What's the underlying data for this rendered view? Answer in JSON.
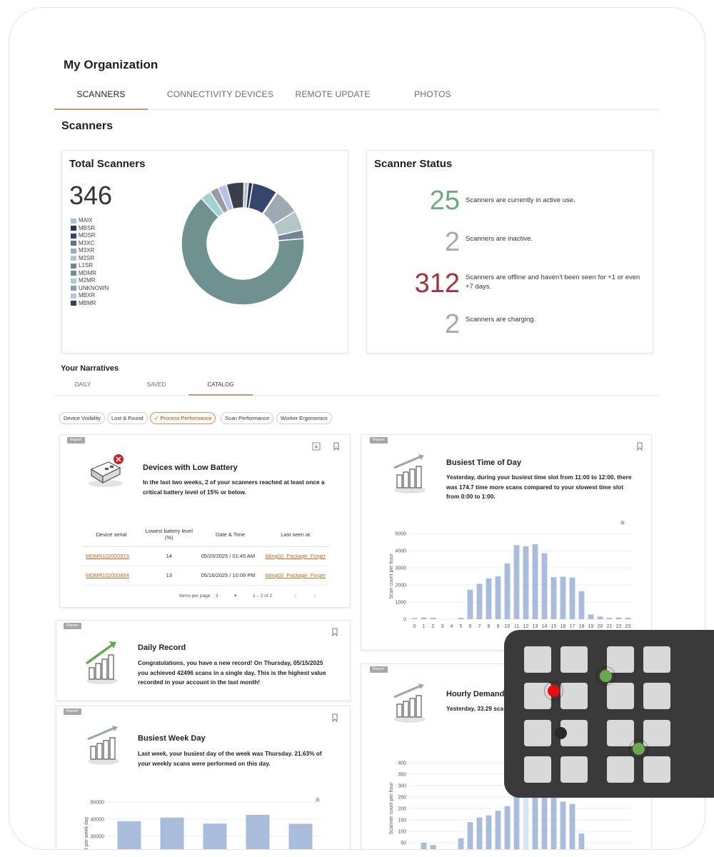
{
  "header": {
    "org_title": "My Organization",
    "tabs": [
      {
        "label": "SCANNERS",
        "active": true
      },
      {
        "label": "CONNECTIVITY DEVICES",
        "active": false
      },
      {
        "label": "REMOTE UPDATE",
        "active": false
      },
      {
        "label": "PHOTOS",
        "active": false
      }
    ]
  },
  "scanners": {
    "section_title": "Scanners",
    "total": {
      "title": "Total Scanners",
      "count": "346",
      "legend": [
        {
          "label": "MAIX",
          "color": "#a9bddc"
        },
        {
          "label": "MBSR",
          "color": "#2f3645"
        },
        {
          "label": "MDSR",
          "color": "#34466d"
        },
        {
          "label": "M3XC",
          "color": "#5d7190"
        },
        {
          "label": "M3XR",
          "color": "#9eaab1"
        },
        {
          "label": "M2SR",
          "color": "#b2c7c6"
        },
        {
          "label": "L1SR",
          "color": "#738496"
        },
        {
          "label": "MDMR",
          "color": "#6f918f"
        },
        {
          "label": "M2MR",
          "color": "#9ed3d2"
        },
        {
          "label": "UNKNOWN",
          "color": "#9a9ba0"
        },
        {
          "label": "MBXR",
          "color": "#b4c3e6"
        },
        {
          "label": "MBMR",
          "color": "#3b3f49"
        }
      ]
    },
    "status": {
      "title": "Scanner Status",
      "rows": [
        {
          "value": "25",
          "text": "Scanners are currently in active use.",
          "color": "#6fa981"
        },
        {
          "value": "2",
          "text": "Scanners are inactive.",
          "color": "#a9a9a9"
        },
        {
          "value": "312",
          "text": "Scanners are offline and haven't been seen for +1 or even +7 days.",
          "color": "#a4323c"
        },
        {
          "value": "2",
          "text": "Scanners are charging.",
          "color": "#a9a9a9"
        }
      ]
    }
  },
  "narratives": {
    "title": "Your Narratives",
    "tabs": [
      {
        "label": "DAILY",
        "active": false
      },
      {
        "label": "SAVED",
        "active": false
      },
      {
        "label": "CATALOG",
        "active": true
      }
    ],
    "chips": [
      {
        "label": "Device Visibility",
        "active": false
      },
      {
        "label": "Lost & Found",
        "active": false
      },
      {
        "label": "✓ Process Performance",
        "active": true
      },
      {
        "label": "Scan Performance",
        "active": false
      },
      {
        "label": "Worker Ergonomics",
        "active": false
      }
    ],
    "badge_label": "Report",
    "low_battery": {
      "title": "Devices with Low Battery",
      "text": "In the last two weeks, 2 of your scanners reached at least once a critical battery level of 15% or below.",
      "columns": [
        "Device serial",
        "Lowest battery level (%)",
        "Date & Time",
        "Last seen at"
      ],
      "rows": [
        {
          "serial": "MDMR102000973",
          "level": "14",
          "date": "05/20/2025 / 01:45 AM",
          "seen": "ilding02_Package_Finger"
        },
        {
          "serial": "MDMR102000894",
          "level": "13",
          "date": "05/16/2025 / 10:09 PM",
          "seen": "ilding02_Package_Finger"
        }
      ],
      "pager": {
        "items_label": "Items per page:",
        "items_value": "3",
        "range": "1 – 2 of 2"
      }
    },
    "busiest_time": {
      "title": "Busiest Time of Day",
      "text": "Yesterday, during your busiest time slot from 11:00 to 12:00, there was 174.7 time more scans compared to your slowest time slot from 0:00 to 1:00."
    },
    "daily_record": {
      "title": "Daily Record",
      "text": "Congratulations, you have a new record! On Thursday, 05/15/2025 you achieved 42496 scans in a single day. This is the highest value recorded in your account in the last month!"
    },
    "hourly_demand": {
      "title": "Hourly Demand",
      "text": "Yesterday, 33.29 sca"
    },
    "busiest_week_day": {
      "title": "Busiest Week Day",
      "text": "Last week, your busiest day of the week was Thursday. 21.63% of your weekly scans were performed on this day."
    }
  },
  "chart_data": [
    {
      "type": "pie",
      "title": "",
      "categories": [
        "MAIX",
        "MBSR",
        "MDSR",
        "M3XC",
        "M3XR",
        "M2SR",
        "L1SR",
        "MDMR",
        "M2MR",
        "UNKNOWN",
        "MBXR",
        "MBMR"
      ],
      "values": [
        4,
        4,
        23,
        1,
        23,
        18,
        8,
        223,
        10,
        8,
        8,
        16
      ]
    },
    {
      "type": "bar",
      "title": "",
      "categories": [
        "0",
        "1",
        "2",
        "3",
        "4",
        "5",
        "6",
        "7",
        "8",
        "9",
        "10",
        "11",
        "12",
        "13",
        "14",
        "15",
        "16",
        "17",
        "18",
        "19",
        "20",
        "21",
        "22",
        "23"
      ],
      "values": [
        60,
        100,
        90,
        0,
        0,
        80,
        1720,
        2060,
        2380,
        2500,
        3250,
        4320,
        4250,
        4370,
        3850,
        2450,
        2480,
        2430,
        1640,
        270,
        150,
        80,
        100,
        80
      ],
      "ylabel": "Scan count per hour",
      "ylim": [
        0,
        5000
      ],
      "yticks": [
        0,
        1000,
        2000,
        3000,
        4000,
        5000
      ]
    },
    {
      "type": "bar",
      "title": "",
      "values": [
        0,
        50,
        40,
        0,
        0,
        70,
        140,
        160,
        170,
        190,
        210,
        300,
        370,
        330,
        300,
        290,
        230,
        220,
        90,
        20,
        0,
        20,
        20,
        20
      ],
      "highlight_index": 12,
      "ylabel": "Scanner count per hour",
      "ylim": [
        0,
        400
      ],
      "yticks": [
        0,
        50,
        100,
        150,
        200,
        250,
        300,
        350,
        400
      ]
    },
    {
      "type": "bar",
      "title": "",
      "values": [
        38800,
        40900,
        37400,
        42500,
        37300
      ],
      "ylabel": "Scan count per week day",
      "ylim": [
        0,
        50000
      ],
      "yticks": [
        30000,
        40000,
        50000
      ]
    }
  ],
  "overlay": {
    "grid_rows": 4,
    "grid_cols": 4,
    "dots": [
      {
        "color": "#e80d10",
        "ring": true,
        "label": "red-dot"
      },
      {
        "color": "#6aa84f",
        "ring": true,
        "label": "green-dot"
      },
      {
        "color": "#2a2a2a",
        "ring": false,
        "label": "dark-dot"
      },
      {
        "color": "#6aa84f",
        "ring": true,
        "label": "green-dot"
      }
    ]
  }
}
